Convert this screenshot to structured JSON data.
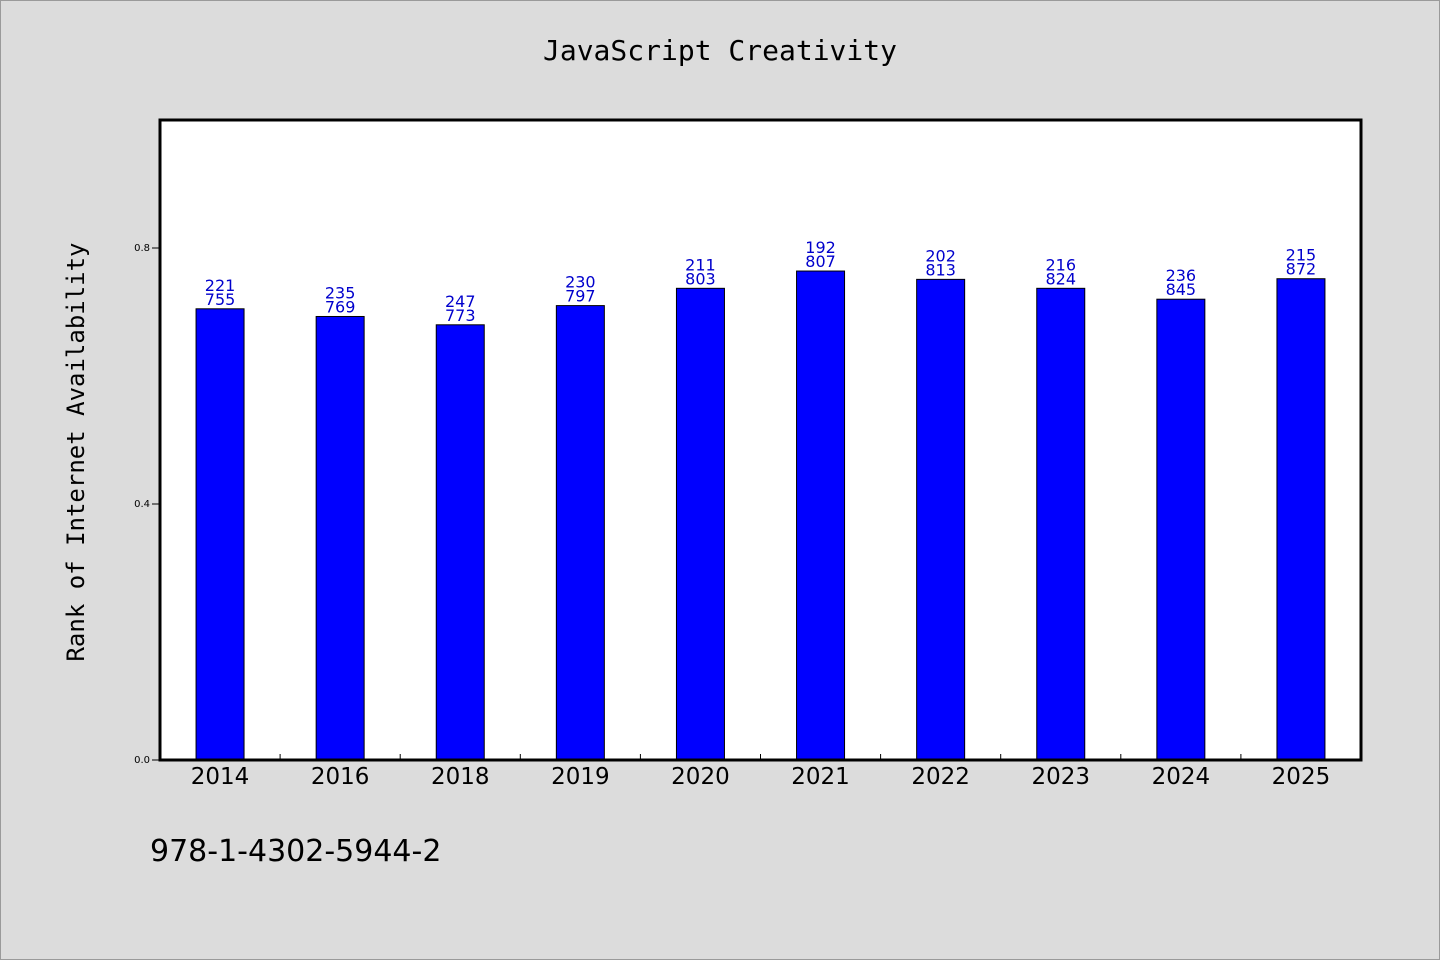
{
  "chart_data": {
    "type": "bar",
    "title": "JavaScript Creativity",
    "xlabel": "",
    "ylabel": "Rank of Internet Availability",
    "categories": [
      "2014",
      "2016",
      "2018",
      "2019",
      "2020",
      "2021",
      "2022",
      "2023",
      "2024",
      "2025"
    ],
    "values": [
      0.705,
      0.693,
      0.68,
      0.71,
      0.737,
      0.764,
      0.751,
      0.737,
      0.72,
      0.752
    ],
    "data_labels_top": [
      "221",
      "235",
      "247",
      "230",
      "211",
      "192",
      "202",
      "216",
      "236",
      "215"
    ],
    "data_labels_bottom": [
      "755",
      "769",
      "773",
      "797",
      "803",
      "807",
      "813",
      "824",
      "845",
      "872"
    ],
    "ylim": [
      0,
      1.0
    ],
    "yticks": [
      0.0,
      0.4,
      0.8
    ],
    "ytick_labels": [
      "0.0",
      "0.4",
      "0.8"
    ],
    "grid": false,
    "colors": {
      "bar": "#0000ff",
      "label": "#0000cc"
    }
  },
  "footer": {
    "text": "978-1-4302-5944-2"
  }
}
